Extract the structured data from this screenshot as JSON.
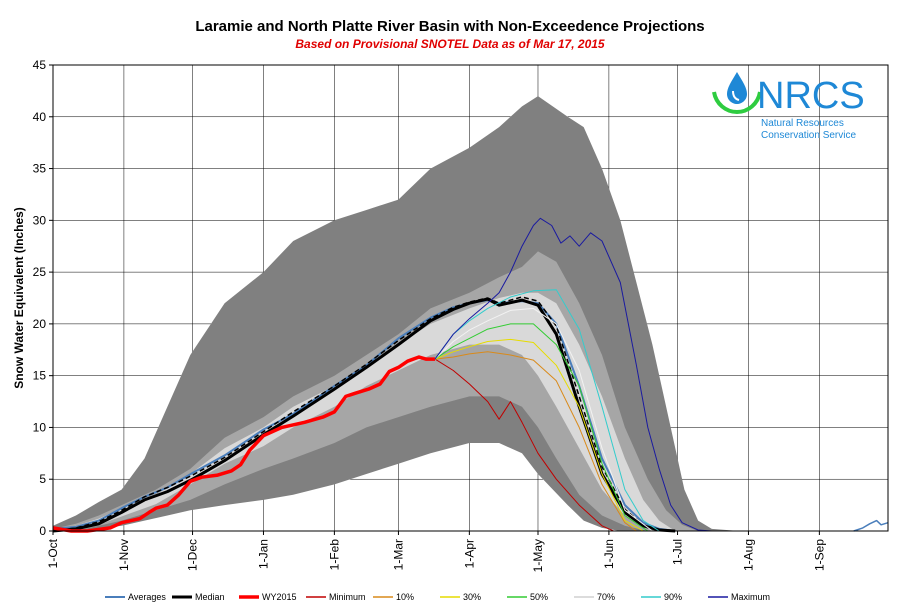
{
  "chart_data": {
    "type": "area",
    "title": "Laramie and North Platte River Basin with Non-Exceedence Projections",
    "subtitle": "Based on Provisional SNOTEL Data as of Mar 17, 2015",
    "xlabel": "",
    "ylabel": "Snow Water Equivalent (Inches)",
    "ylim": [
      0,
      45
    ],
    "yticks": [
      0,
      5,
      10,
      15,
      20,
      25,
      30,
      35,
      40,
      45
    ],
    "xlim": [
      0,
      365
    ],
    "x_unit": "days since 1-Oct",
    "xticks": [
      {
        "x": 0,
        "label": "1-Oct"
      },
      {
        "x": 31,
        "label": "1-Nov"
      },
      {
        "x": 61,
        "label": "1-Dec"
      },
      {
        "x": 92,
        "label": "1-Jan"
      },
      {
        "x": 123,
        "label": "1-Feb"
      },
      {
        "x": 151,
        "label": "1-Mar"
      },
      {
        "x": 182,
        "label": "1-Apr"
      },
      {
        "x": 212,
        "label": "1-May"
      },
      {
        "x": 243,
        "label": "1-Jun"
      },
      {
        "x": 273,
        "label": "1-Jul"
      },
      {
        "x": 304,
        "label": "1-Aug"
      },
      {
        "x": 335,
        "label": "1-Sep"
      }
    ],
    "grid": true,
    "legend_position": "bottom",
    "bands": [
      {
        "name": "outer",
        "color": "#808080",
        "x": [
          0,
          10,
          20,
          30,
          40,
          50,
          60,
          75,
          92,
          105,
          123,
          137,
          151,
          165,
          182,
          195,
          205,
          212,
          225,
          232,
          240,
          248,
          255,
          262,
          270,
          276,
          282,
          288,
          300
        ],
        "upper": [
          0.5,
          1.5,
          2.8,
          4,
          7,
          12,
          17,
          22,
          25,
          28,
          30,
          31,
          32,
          35,
          37,
          39,
          41,
          42,
          40,
          39,
          35,
          30,
          24,
          18,
          10,
          4,
          1,
          0.2,
          0
        ],
        "lower": [
          0,
          0,
          0.2,
          0.5,
          1,
          1.5,
          2,
          2.5,
          3,
          3.5,
          4.5,
          5.5,
          6.5,
          7.5,
          8.5,
          8.5,
          7.5,
          5.5,
          2.5,
          1,
          0.3,
          0,
          0,
          0,
          0,
          0,
          0,
          0,
          0
        ]
      },
      {
        "name": "middle",
        "color": "#a6a6a6",
        "x": [
          0,
          10,
          20,
          30,
          45,
          60,
          75,
          92,
          105,
          123,
          137,
          151,
          165,
          182,
          195,
          205,
          212,
          220,
          230,
          240,
          250,
          260,
          268,
          275,
          282
        ],
        "upper": [
          0.2,
          0.7,
          1.5,
          2.5,
          4,
          6,
          9,
          11,
          13,
          15,
          17,
          19,
          21.5,
          23,
          24.5,
          25.5,
          27,
          26,
          22,
          17,
          10,
          5,
          2,
          0.6,
          0
        ],
        "lower": [
          0,
          0,
          0.5,
          1,
          2,
          3,
          4.5,
          6,
          7,
          8.5,
          10,
          11,
          12,
          13,
          13,
          12,
          10,
          7,
          3.5,
          1.5,
          0.5,
          0,
          0,
          0,
          0
        ]
      },
      {
        "name": "inner",
        "color": "#d9d9d9",
        "x": [
          0,
          10,
          20,
          30,
          45,
          60,
          75,
          92,
          105,
          123,
          137,
          151,
          165,
          182,
          195,
          205,
          212,
          220,
          230,
          240,
          250,
          258,
          265,
          272
        ],
        "upper": [
          0.1,
          0.5,
          1.2,
          2.2,
          3.5,
          5.5,
          8,
          10,
          12,
          14,
          16,
          18,
          20,
          21.5,
          22.5,
          23,
          23,
          22,
          18,
          13,
          7,
          3,
          1,
          0
        ],
        "lower": [
          0,
          0.1,
          0.6,
          1.4,
          2.6,
          4.5,
          6.5,
          8.2,
          10,
          12,
          14,
          15.5,
          17,
          18,
          18,
          17,
          15,
          12,
          8,
          4,
          1.5,
          0.4,
          0,
          0
        ]
      }
    ],
    "series": [
      {
        "name": "Averages",
        "color": "#4a7ebb",
        "width": 2,
        "dash": "",
        "x": [
          0,
          10,
          20,
          30,
          40,
          50,
          61,
          75,
          92,
          105,
          123,
          137,
          151,
          165,
          175,
          182,
          190,
          195,
          205,
          212,
          220,
          230,
          240,
          250,
          258,
          265,
          272
        ],
        "y": [
          0.2,
          0.4,
          1,
          2.2,
          3.3,
          4.2,
          5.6,
          7.3,
          9.8,
          11.3,
          14,
          16,
          18.6,
          20.6,
          21.6,
          22,
          22.3,
          22,
          22.2,
          22,
          20,
          14,
          7,
          2.5,
          0.8,
          0.2,
          0
        ]
      },
      {
        "name": "Median",
        "color": "#000000",
        "width": 3,
        "dash": "",
        "x": [
          0,
          10,
          20,
          30,
          40,
          50,
          61,
          75,
          92,
          105,
          123,
          137,
          151,
          165,
          175,
          182,
          190,
          195,
          205,
          212,
          220,
          230,
          240,
          250,
          258,
          265,
          272
        ],
        "y": [
          0,
          0.2,
          0.7,
          1.8,
          3,
          3.8,
          5,
          6.8,
          9.3,
          11.1,
          13.7,
          15.8,
          18,
          20.3,
          21.4,
          22,
          22.4,
          21.8,
          22.3,
          21.8,
          19,
          12,
          5.5,
          1.8,
          0.5,
          0.1,
          0
        ]
      },
      {
        "name": "Median (dashed)",
        "color": "#000000",
        "width": 1.5,
        "dash": "5,3",
        "legend": false,
        "x": [
          0,
          10,
          20,
          30,
          40,
          50,
          61,
          75,
          92,
          105,
          123,
          137,
          151,
          165,
          175,
          182,
          190,
          195,
          205,
          212,
          220,
          230,
          240,
          250,
          258,
          265,
          272
        ],
        "y": [
          0,
          0.3,
          0.9,
          2,
          3.3,
          4.2,
          5.4,
          7.1,
          9.6,
          11.5,
          14,
          16.1,
          18.4,
          20.5,
          21.6,
          22.1,
          22.5,
          22,
          22.6,
          22.2,
          19.8,
          13,
          6.2,
          2.1,
          0.6,
          0.1,
          0
        ]
      },
      {
        "name": "WY2015",
        "color": "#ff0000",
        "width": 3.5,
        "dash": "",
        "x": [
          0,
          8,
          15,
          25,
          30,
          38,
          42,
          45,
          50,
          55,
          60,
          65,
          72,
          78,
          82,
          86,
          92,
          100,
          110,
          118,
          123,
          128,
          132,
          138,
          143,
          147,
          151,
          155,
          160,
          163,
          167
        ],
        "y": [
          0.3,
          0,
          0,
          0.3,
          0.8,
          1.2,
          1.8,
          2.2,
          2.5,
          3.5,
          4.8,
          5.2,
          5.4,
          5.8,
          6.4,
          7.8,
          9.2,
          10,
          10.5,
          11,
          11.5,
          13,
          13.3,
          13.7,
          14.2,
          15.4,
          15.8,
          16.4,
          16.8,
          16.6,
          16.6
        ]
      },
      {
        "name": "Minimum",
        "color": "#c00000",
        "width": 1,
        "dash": "",
        "x": [
          167,
          175,
          182,
          190,
          195,
          200,
          205,
          212,
          220,
          230,
          240,
          245
        ],
        "y": [
          16.6,
          15.5,
          14.2,
          12.5,
          10.8,
          12.5,
          10.5,
          7.5,
          5,
          2.5,
          0.5,
          0
        ]
      },
      {
        "name": "10%",
        "color": "#d98a1a",
        "width": 1,
        "dash": "",
        "x": [
          167,
          175,
          182,
          190,
          200,
          210,
          220,
          230,
          240,
          250,
          255
        ],
        "y": [
          16.6,
          16.8,
          17.1,
          17.3,
          17,
          16.5,
          14.5,
          10,
          4.5,
          0.8,
          0
        ]
      },
      {
        "name": "30%",
        "color": "#e6dc00",
        "width": 1,
        "dash": "",
        "x": [
          167,
          175,
          182,
          190,
          200,
          210,
          220,
          230,
          240,
          250,
          258
        ],
        "y": [
          16.6,
          17.3,
          17.8,
          18.3,
          18.5,
          18.2,
          16,
          12,
          5.5,
          1,
          0
        ]
      },
      {
        "name": "50%",
        "color": "#33cc33",
        "width": 1,
        "dash": "",
        "x": [
          167,
          175,
          182,
          190,
          200,
          210,
          220,
          230,
          240,
          250,
          260
        ],
        "y": [
          16.6,
          17.8,
          18.6,
          19.5,
          20,
          20,
          18,
          14,
          6.5,
          1.5,
          0
        ]
      },
      {
        "name": "70%",
        "color": "#f2f2f2",
        "width": 1,
        "dash": "",
        "x": [
          167,
          175,
          182,
          190,
          200,
          210,
          220,
          230,
          240,
          250,
          262
        ],
        "y": [
          16.6,
          18.3,
          19.4,
          20.3,
          21.3,
          21.5,
          20,
          15.5,
          8,
          2,
          0
        ]
      },
      {
        "name": "90%",
        "color": "#33cccc",
        "width": 1,
        "dash": "",
        "x": [
          167,
          175,
          182,
          190,
          200,
          210,
          220,
          230,
          240,
          250,
          258,
          265
        ],
        "y": [
          16.6,
          19,
          20.3,
          21.5,
          22.6,
          23.2,
          23.3,
          19.5,
          12,
          4,
          1,
          0
        ]
      },
      {
        "name": "Maximum",
        "color": "#1a1aa0",
        "width": 1,
        "dash": "",
        "x": [
          167,
          175,
          182,
          190,
          195,
          200,
          205,
          210,
          213,
          218,
          222,
          226,
          230,
          235,
          240,
          248,
          255,
          260,
          265,
          270,
          275,
          282,
          288
        ],
        "y": [
          16.6,
          19,
          20.5,
          22,
          23,
          25,
          27.5,
          29.5,
          30.2,
          29.5,
          27.8,
          28.5,
          27.5,
          28.8,
          28,
          24,
          16,
          10,
          6,
          2.5,
          0.8,
          0.1,
          0
        ]
      },
      {
        "name": "Averages (late season)",
        "color": "#4a7ebb",
        "width": 1.5,
        "dash": "",
        "legend": false,
        "x": [
          350,
          354,
          357,
          360,
          362,
          365
        ],
        "y": [
          0,
          0.3,
          0.7,
          1,
          0.6,
          0.8
        ]
      }
    ],
    "legend": [
      "Averages",
      "Median",
      "WY2015",
      "Minimum",
      "10%",
      "30%",
      "50%",
      "70%",
      "90%",
      "Maximum"
    ]
  },
  "logo": {
    "text": "NRCS",
    "line1": "Natural Resources",
    "line2": "Conservation Service",
    "icon": "water-drop-icon",
    "color": "#1e88d6",
    "accent": "#2ecc40"
  }
}
